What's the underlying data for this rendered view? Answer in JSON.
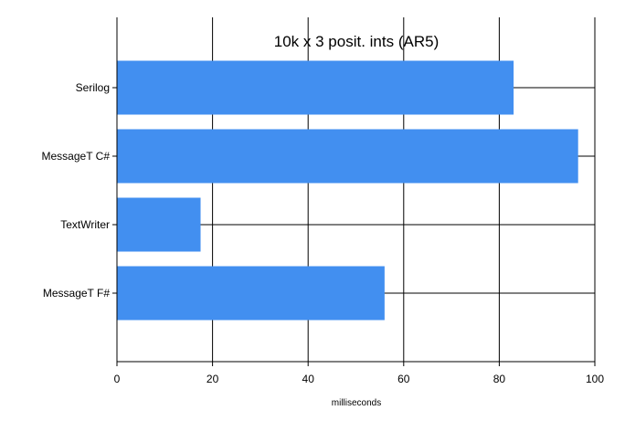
{
  "chart_data": {
    "type": "bar",
    "orientation": "horizontal",
    "title": "10k x 3 posit. ints (AR5)",
    "xlabel": "milliseconds",
    "ylabel": "",
    "categories": [
      "Serilog",
      "MessageT C#",
      "TextWriter",
      "MessageT F#"
    ],
    "values": [
      83,
      96.5,
      17.5,
      56
    ],
    "xlim": [
      0,
      100
    ],
    "x_ticks": [
      0,
      20,
      40,
      60,
      80,
      100
    ],
    "grid": true,
    "legend": "none",
    "bar_color": "#428FF0"
  }
}
